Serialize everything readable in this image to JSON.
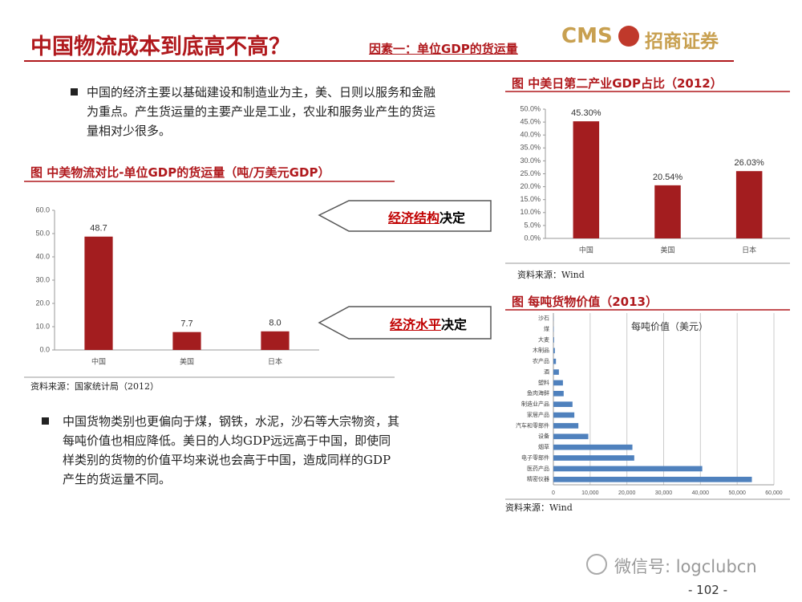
{
  "header": {
    "title": "中国物流成本到底高不高？",
    "subtitle": "因素一：单位GDP的货运量",
    "logo_left": "CMS",
    "logo_right": "招商证券"
  },
  "bullets": [
    "中国的经济主要以基础建设和制造业为主，美、日则以服务和金融为重点。产生货运量的主要产业是工业，农业和服务业产生的货运量相对少很多。",
    "中国货物类别也更偏向于煤，钢铁，水泥，沙石等大宗物资，其每吨价值也相应降低。美日的人均GDP远远高于中国，即使同样类别的货物的价值平均来说也会高于中国，造成同样的GDP产生的货运量不同。"
  ],
  "callouts": [
    {
      "highlight": "经济结构",
      "text": "决定"
    },
    {
      "highlight": "经济水平",
      "text": "决定"
    }
  ],
  "chart_data": [
    {
      "type": "bar",
      "title": "图 中美物流对比-单位GDP的货运量（吨/万美元GDP）",
      "source": "资料来源：国家统计局（2012）",
      "categories": [
        "中国",
        "美国",
        "日本"
      ],
      "values": [
        48.7,
        7.7,
        8.0
      ],
      "value_labels": [
        "48.7",
        "7.7",
        "8.0"
      ],
      "color": "#a31d1f",
      "ylim": [
        0,
        60
      ],
      "yticks": [
        {
          "value": 0,
          "label": "0.0"
        },
        {
          "value": 10,
          "label": "10.0"
        },
        {
          "value": 20,
          "label": "20.0"
        },
        {
          "value": 30,
          "label": "30.0"
        },
        {
          "value": 40,
          "label": "40.0"
        },
        {
          "value": 50,
          "label": "50.0"
        },
        {
          "value": 60,
          "label": "60.0"
        }
      ],
      "grid": false
    },
    {
      "type": "bar",
      "title": "图 中美日第二产业GDP占比（2012）",
      "source": "资料来源：Wind",
      "categories": [
        "中国",
        "美国",
        "日本"
      ],
      "values": [
        45.3,
        20.54,
        26.03
      ],
      "value_labels": [
        "45.30%",
        "20.54%",
        "26.03%"
      ],
      "color": "#a31d1f",
      "ylim": [
        0,
        50
      ],
      "yticks": [
        {
          "value": 0,
          "label": "0.0%"
        },
        {
          "value": 5,
          "label": "5.0%"
        },
        {
          "value": 10,
          "label": "10.0%"
        },
        {
          "value": 15,
          "label": "15.0%"
        },
        {
          "value": 20,
          "label": "20.0%"
        },
        {
          "value": 25,
          "label": "25.0%"
        },
        {
          "value": 30,
          "label": "30.0%"
        },
        {
          "value": 35,
          "label": "35.0%"
        },
        {
          "value": 40,
          "label": "40.0%"
        },
        {
          "value": 45,
          "label": "45.0%"
        },
        {
          "value": 50,
          "label": "50.0%"
        }
      ],
      "grid": false
    },
    {
      "type": "barh",
      "title": "图 每吨货物价值（2013）",
      "source": "资料来源：Wind",
      "annotation": "每吨价值（美元）",
      "categories": [
        "沙石",
        "煤",
        "大麦",
        "木制品",
        "农产品",
        "酒",
        "塑料",
        "鱼肉海鲜",
        "制造业产品",
        "家居产品",
        "汽车和零部件",
        "设备",
        "烟草",
        "电子零部件",
        "医药产品",
        "精密仪器"
      ],
      "values": [
        50,
        100,
        200,
        400,
        700,
        1500,
        2600,
        2800,
        5200,
        5700,
        6800,
        9500,
        21500,
        22000,
        40500,
        54000
      ],
      "color": "#4f81bd",
      "xlim": [
        0,
        60000
      ],
      "xticks": [
        0,
        {
          "value": 10000,
          "label": "10,000"
        },
        {
          "value": 20000,
          "label": "20,000"
        },
        {
          "value": 30000,
          "label": "30,000"
        },
        {
          "value": 40000,
          "label": "40,000"
        },
        {
          "value": 50000,
          "label": "50,000"
        },
        {
          "value": 60000,
          "label": "60,000"
        }
      ],
      "grid": true
    }
  ],
  "footer": {
    "watermark": "微信号: logclubcn",
    "page": "- 102 -"
  }
}
